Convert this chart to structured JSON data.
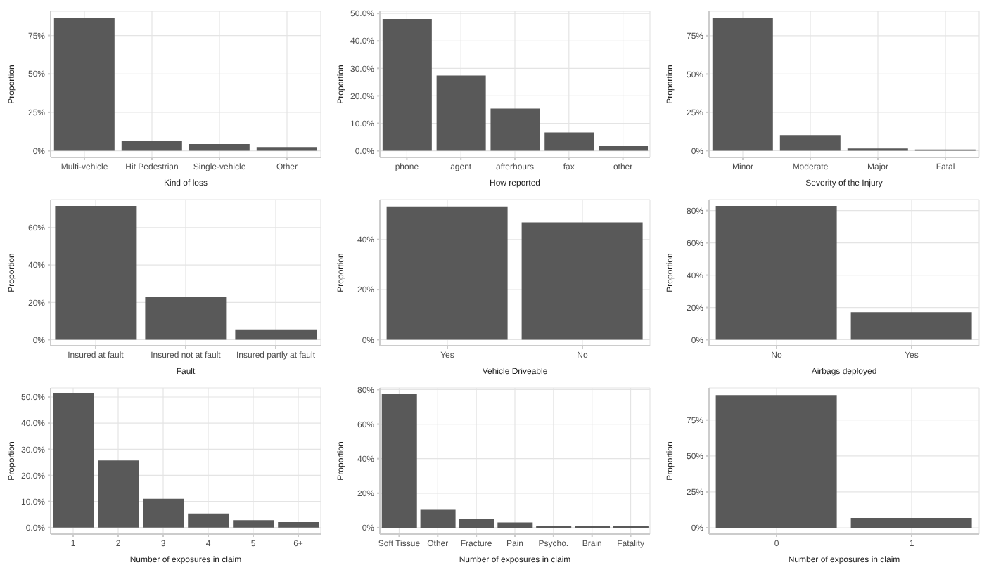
{
  "chart_data": [
    {
      "type": "bar",
      "xlabel": "Kind of loss",
      "ylabel": "Proportion",
      "categories": [
        "Multi-vehicle",
        "Hit Pedestrian",
        "Single-vehicle",
        "Other"
      ],
      "values": [
        86.6,
        6.3,
        4.4,
        2.5
      ],
      "color": "#595959",
      "ylim": [
        -4.3,
        90.8
      ],
      "yticks": [
        {
          "value": 0,
          "label": "0%"
        },
        {
          "value": 25,
          "label": "25%"
        },
        {
          "value": 50,
          "label": "50%"
        },
        {
          "value": 75,
          "label": "75%"
        }
      ],
      "grid": true
    },
    {
      "type": "bar",
      "xlabel": "How reported",
      "ylabel": "Proportion",
      "categories": [
        "phone",
        "agent",
        "afterhours",
        "fax",
        "other"
      ],
      "values": [
        48.0,
        27.4,
        15.4,
        6.7,
        1.7
      ],
      "color": "#595959",
      "ylim": [
        -2.4,
        50.8
      ],
      "yticks": [
        {
          "value": 0,
          "label": "0.0%"
        },
        {
          "value": 10,
          "label": "10.0%"
        },
        {
          "value": 20,
          "label": "20.0%"
        },
        {
          "value": 30,
          "label": "30.0%"
        },
        {
          "value": 40,
          "label": "40.0%"
        },
        {
          "value": 50,
          "label": "50.0%"
        }
      ],
      "grid": true
    },
    {
      "type": "bar",
      "xlabel": "Severity of the Injury",
      "ylabel": "Proportion",
      "categories": [
        "Minor",
        "Moderate",
        "Major",
        "Fatal"
      ],
      "values": [
        86.9,
        10.2,
        1.4,
        0.8
      ],
      "color": "#595959",
      "ylim": [
        -4.4,
        91
      ],
      "yticks": [
        {
          "value": 0,
          "label": "0%"
        },
        {
          "value": 25,
          "label": "25%"
        },
        {
          "value": 50,
          "label": "50%"
        },
        {
          "value": 75,
          "label": "75%"
        }
      ],
      "grid": true
    },
    {
      "type": "bar",
      "xlabel": "Fault",
      "ylabel": "Proportion",
      "categories": [
        "Insured at fault",
        "Insured not at fault",
        "Insured partly at fault"
      ],
      "values": [
        71.6,
        23.0,
        5.5
      ],
      "color": "#595959",
      "ylim": [
        -3.2,
        75
      ],
      "yticks": [
        {
          "value": 0,
          "label": "0%"
        },
        {
          "value": 20,
          "label": "20%"
        },
        {
          "value": 40,
          "label": "40%"
        },
        {
          "value": 60,
          "label": "60%"
        }
      ],
      "grid": true
    },
    {
      "type": "bar",
      "xlabel": "Vehicle Driveable",
      "ylabel": "Proportion",
      "categories": [
        "Yes",
        "No"
      ],
      "values": [
        53.2,
        46.8
      ],
      "color": "#595959",
      "ylim": [
        -2.4,
        55.9
      ],
      "yticks": [
        {
          "value": 0,
          "label": "0%"
        },
        {
          "value": 20,
          "label": "20%"
        },
        {
          "value": 40,
          "label": "40%"
        }
      ],
      "grid": true
    },
    {
      "type": "bar",
      "xlabel": "Airbags deployed",
      "ylabel": "Proportion",
      "categories": [
        "No",
        "Yes"
      ],
      "values": [
        82.9,
        17.1
      ],
      "color": "#595959",
      "ylim": [
        -3.7,
        86.8
      ],
      "yticks": [
        {
          "value": 0,
          "label": "0%"
        },
        {
          "value": 20,
          "label": "20%"
        },
        {
          "value": 40,
          "label": "40%"
        },
        {
          "value": 60,
          "label": "60%"
        },
        {
          "value": 80,
          "label": "80%"
        }
      ],
      "grid": true
    },
    {
      "type": "bar",
      "xlabel": "Number of exposures in claim",
      "ylabel": "Proportion",
      "categories": [
        "1",
        "2",
        "3",
        "4",
        "5",
        "6+"
      ],
      "values": [
        51.6,
        25.7,
        11.0,
        5.4,
        2.8,
        2.1
      ],
      "color": "#595959",
      "ylim": [
        -2.5,
        53.5
      ],
      "yticks": [
        {
          "value": 0,
          "label": "0.0%"
        },
        {
          "value": 10,
          "label": "10.0%"
        },
        {
          "value": 20,
          "label": "20.0%"
        },
        {
          "value": 30,
          "label": "30.0%"
        },
        {
          "value": 40,
          "label": "40.0%"
        },
        {
          "value": 50,
          "label": "50.0%"
        }
      ],
      "grid": true
    },
    {
      "type": "bar",
      "xlabel": "Number of exposures in claim",
      "ylabel": "Proportion",
      "categories": [
        "Soft Tissue",
        "Other",
        "Fracture",
        "Pain",
        "Psycho.",
        "Brain",
        "Fatality"
      ],
      "values": [
        77.3,
        10.3,
        5.2,
        3.0,
        1.0,
        1.0,
        1.0
      ],
      "color": "#595959",
      "ylim": [
        -3.7,
        81
      ],
      "yticks": [
        {
          "value": 0,
          "label": "0%"
        },
        {
          "value": 20,
          "label": "20%"
        },
        {
          "value": 40,
          "label": "40%"
        },
        {
          "value": 60,
          "label": "60%"
        },
        {
          "value": 80,
          "label": "80%"
        }
      ],
      "grid": true
    },
    {
      "type": "bar",
      "xlabel": "Number of exposures in claim",
      "ylabel": "Proportion",
      "categories": [
        "0",
        "1"
      ],
      "values": [
        92.4,
        6.8
      ],
      "color": "#595959",
      "ylim": [
        -4.4,
        97.4
      ],
      "yticks": [
        {
          "value": 0,
          "label": "0%"
        },
        {
          "value": 25,
          "label": "25%"
        },
        {
          "value": 50,
          "label": "50%"
        },
        {
          "value": 75,
          "label": "75%"
        }
      ],
      "grid": true
    }
  ]
}
